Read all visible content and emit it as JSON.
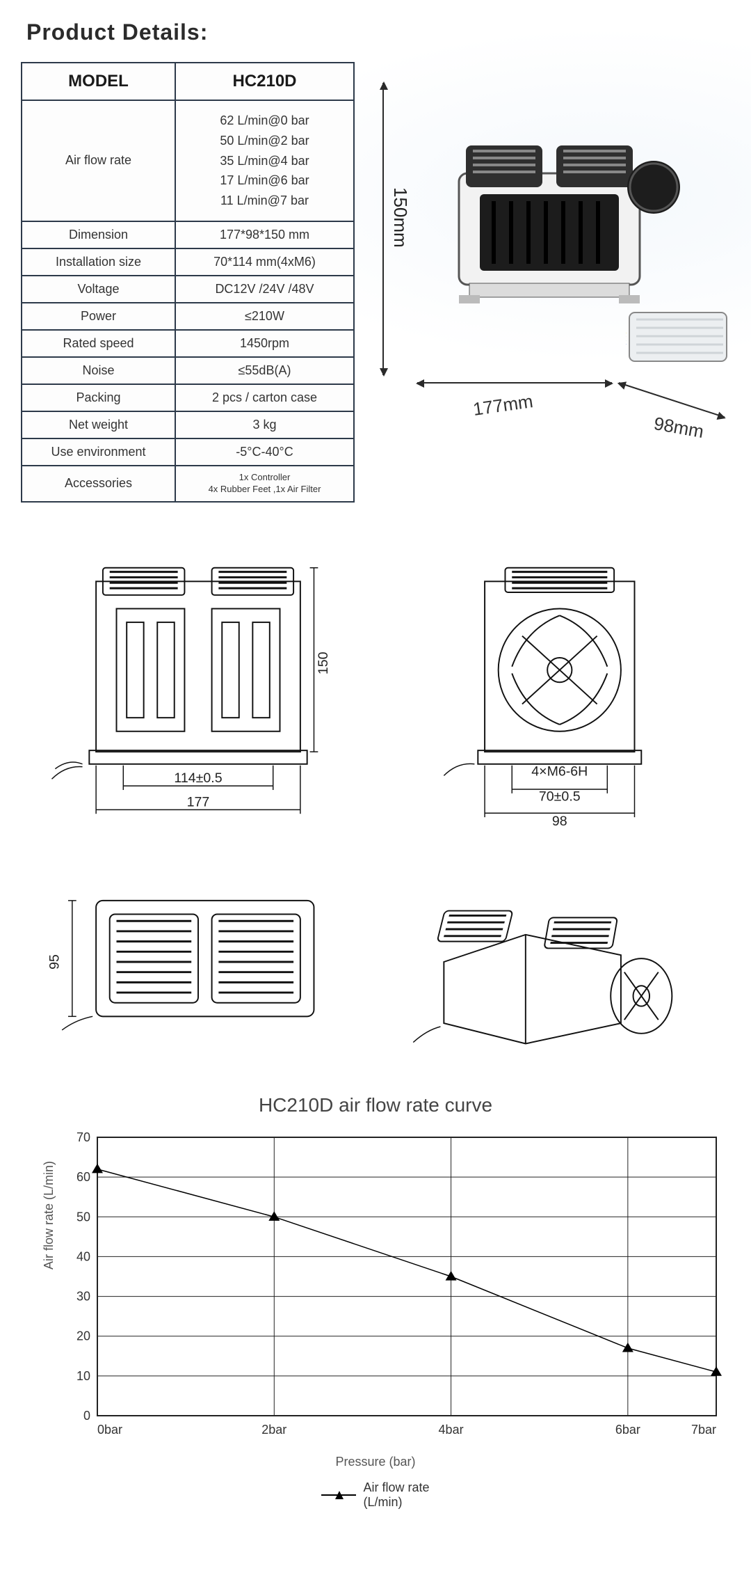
{
  "page_title": "Product Details:",
  "table": {
    "header_model": "MODEL",
    "header_value": "HC210D",
    "rows": [
      {
        "label": "Air flow rate",
        "value": "62 L/min@0 bar\n50 L/min@2 bar\n35 L/min@4 bar\n17 L/min@6 bar\n11 L/min@7 bar",
        "multiline": true
      },
      {
        "label": "Dimension",
        "value": "177*98*150 mm"
      },
      {
        "label": "Installation size",
        "value": "70*114 mm(4xM6)"
      },
      {
        "label": "Voltage",
        "value": "DC12V /24V /48V"
      },
      {
        "label": "Power",
        "value": "≤210W"
      },
      {
        "label": "Rated speed",
        "value": "1450rpm"
      },
      {
        "label": "Noise",
        "value": "≤55dB(A)"
      },
      {
        "label": "Packing",
        "value": "2 pcs / carton case"
      },
      {
        "label": "Net weight",
        "value": "3 kg"
      },
      {
        "label": "Use environment",
        "value": "-5°C-40°C"
      },
      {
        "label": "Accessories",
        "value": "1x Controller\n4x Rubber Feet ,1x Air Filter",
        "small": true
      }
    ]
  },
  "product_dims": {
    "height": "150mm",
    "width": "177mm",
    "depth": "98mm"
  },
  "drawings": {
    "front": {
      "w": "177",
      "inner_w": "114±0.5",
      "h": "150"
    },
    "side": {
      "w": "98",
      "inner_w": "70±0.5",
      "bolt": "4×M6-6H"
    },
    "top": {
      "h": "95"
    }
  },
  "chart": {
    "title": "HC210D air flow rate curve",
    "type": "line",
    "xlabel": "Pressure (bar)",
    "ylabel": "Air flow rate (L/min)",
    "legend_label": "Air flow rate\n(L/min)",
    "x_categories": [
      "0bar",
      "2bar",
      "4bar",
      "6bar",
      "7bar"
    ],
    "x_positions": [
      0,
      2,
      4,
      6,
      7
    ],
    "y_ticks": [
      0,
      10,
      20,
      30,
      40,
      50,
      60,
      70
    ],
    "ylim": [
      0,
      70
    ],
    "xlim": [
      0,
      7
    ],
    "values": [
      62,
      50,
      35,
      17,
      11
    ],
    "line_color": "#000000",
    "marker": "triangle",
    "marker_size": 8,
    "line_width": 1.5,
    "grid_color": "#222222",
    "background_color": "#ffffff",
    "title_fontsize": 28,
    "label_fontsize": 18,
    "tick_fontsize": 18
  }
}
